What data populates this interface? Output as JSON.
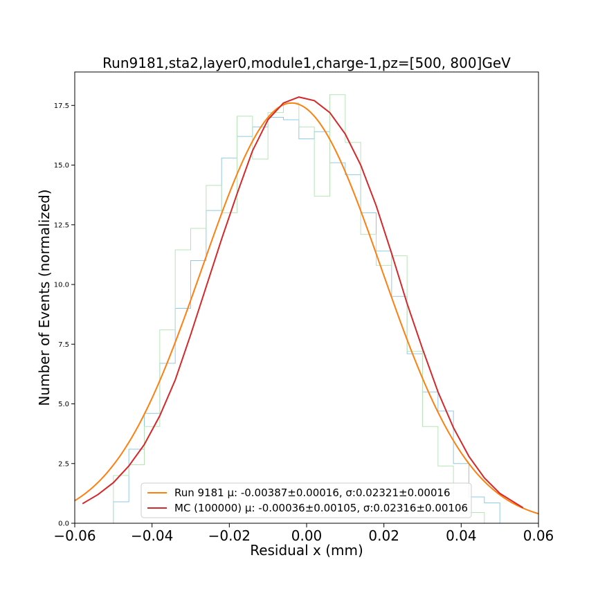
{
  "chart_data": {
    "type": "line",
    "title": "Run9181,sta2,layer0,module1,charge-1,pz=[500, 800]GeV",
    "xlabel": "Residual x (mm)",
    "ylabel": "Number of Events (normalized)",
    "xlim": [
      -0.06,
      0.06
    ],
    "ylim": [
      0,
      18.9
    ],
    "x_ticks": [
      -0.06,
      -0.04,
      -0.02,
      0.0,
      0.02,
      0.04,
      0.06
    ],
    "x_tick_labels": [
      "−0.06",
      "−0.04",
      "−0.02",
      "0.00",
      "0.02",
      "0.04",
      "0.06"
    ],
    "y_ticks": [
      0,
      2.5,
      5.0,
      7.5,
      10.0,
      12.5,
      15.0,
      17.5
    ],
    "y_tick_labels": [
      "0.0",
      "2.5",
      "5.0",
      "7.5",
      "10.0",
      "12.5",
      "15.0",
      "17.5"
    ],
    "grid": false,
    "legend_position": "lower center",
    "series": [
      {
        "name": "Run 9181 μ: -0.00387±0.00016, σ:0.02321±0.00016",
        "kind": "gaussian-fit",
        "color": "#ff7f0e",
        "mu": -0.00387,
        "sigma": 0.02321,
        "amplitude": 17.6,
        "x_range": [
          -0.06,
          0.06
        ]
      },
      {
        "name": "MC (100000) μ: -0.00036±0.00105, σ:0.02316±0.00106",
        "kind": "line",
        "color": "#d62728",
        "x": [
          -0.058,
          -0.054,
          -0.05,
          -0.046,
          -0.042,
          -0.038,
          -0.034,
          -0.03,
          -0.026,
          -0.022,
          -0.018,
          -0.014,
          -0.01,
          -0.006,
          -0.002,
          0.002,
          0.006,
          0.01,
          0.014,
          0.018,
          0.022,
          0.026,
          0.03,
          0.034,
          0.038,
          0.042,
          0.046,
          0.05,
          0.054,
          0.056
        ],
        "y": [
          0.82,
          1.2,
          1.7,
          2.4,
          3.3,
          4.5,
          6.0,
          7.9,
          9.9,
          11.9,
          13.8,
          15.6,
          16.9,
          17.6,
          17.85,
          17.7,
          17.2,
          16.3,
          15.0,
          13.3,
          11.3,
          9.2,
          7.3,
          5.5,
          4.0,
          2.8,
          1.9,
          1.25,
          0.85,
          0.65
        ]
      },
      {
        "kind": "step-histogram",
        "color": "#8ecae6",
        "bin_edges": [
          -0.05,
          -0.048,
          -0.046,
          -0.044,
          -0.042,
          -0.04,
          -0.038,
          -0.036,
          -0.034,
          -0.032,
          -0.03,
          -0.028,
          -0.026,
          -0.024,
          -0.022,
          -0.02,
          -0.018,
          -0.016,
          -0.014,
          -0.012,
          -0.01,
          -0.008,
          -0.006,
          -0.004,
          -0.002,
          0.0,
          0.002,
          0.004,
          0.006,
          0.008,
          0.01,
          0.012,
          0.014,
          0.016,
          0.018,
          0.02,
          0.022,
          0.024,
          0.026,
          0.028,
          0.03,
          0.032,
          0.034,
          0.036,
          0.038,
          0.04,
          0.042,
          0.044,
          0.046,
          0.048,
          0.05
        ],
        "values": [
          0.9,
          0.9,
          3.1,
          3.1,
          4.6,
          4.6,
          6.7,
          6.7,
          9.0,
          9.0,
          11.0,
          11.0,
          13.1,
          13.1,
          15.3,
          15.3,
          16.2,
          16.2,
          16.6,
          16.6,
          17.0,
          17.0,
          16.9,
          16.9,
          16.1,
          16.1,
          16.4,
          16.4,
          15.1,
          15.1,
          14.6,
          14.6,
          13.0,
          13.0,
          11.4,
          11.4,
          9.5,
          9.5,
          7.1,
          7.1,
          5.5,
          5.5,
          4.7,
          4.7,
          2.5,
          2.5,
          1.1,
          1.1,
          0.85,
          0.85
        ]
      },
      {
        "kind": "step-histogram",
        "color": "#b7e4b7",
        "bin_edges": [
          -0.05,
          -0.046,
          -0.042,
          -0.038,
          -0.034,
          -0.03,
          -0.026,
          -0.022,
          -0.018,
          -0.014,
          -0.01,
          -0.006,
          -0.002,
          0.002,
          0.006,
          0.01,
          0.014,
          0.018,
          0.022,
          0.026,
          0.03,
          0.034,
          0.038,
          0.042,
          0.046,
          0.05
        ],
        "values": [
          2.0,
          2.45,
          4.05,
          8.1,
          11.45,
          12.35,
          14.15,
          13.0,
          17.05,
          15.25,
          17.2,
          17.6,
          16.6,
          13.7,
          17.95,
          15.95,
          12.1,
          10.8,
          11.2,
          7.2,
          4.05,
          2.4,
          0.9,
          0.45,
          0.0
        ]
      }
    ]
  }
}
